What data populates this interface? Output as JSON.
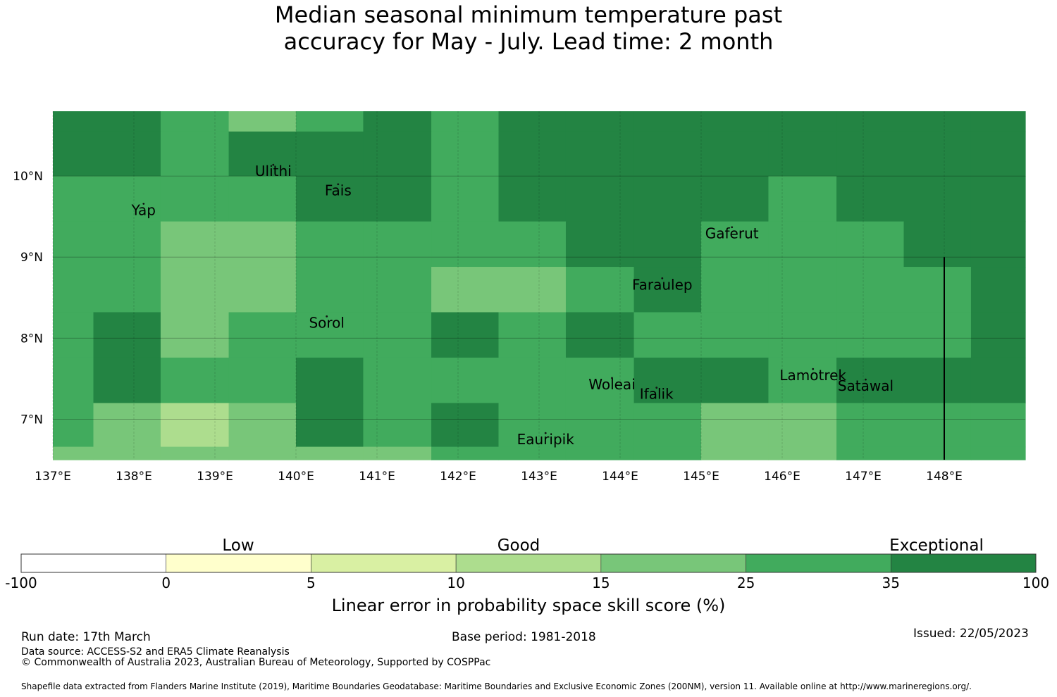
{
  "title_line1": "Median seasonal minimum temperature past",
  "title_line2": "accuracy for May - July. Lead time: 2 month",
  "colors": {
    "c5": "#78c679",
    "c6": "#41ab5d",
    "c7": "#238443",
    "c4": "#addd8e",
    "c3": "#d9f0a3",
    "c2": "#ffffcc",
    "c1": "#ffffff"
  },
  "map": {
    "lon_range": [
      137,
      149
    ],
    "lat_range": [
      6.5,
      10.8
    ],
    "lon_ticks": [
      "137°E",
      "138°E",
      "139°E",
      "140°E",
      "141°E",
      "142°E",
      "143°E",
      "144°E",
      "145°E",
      "146°E",
      "147°E",
      "148°E"
    ],
    "lat_ticks": [
      "7°N",
      "8°N",
      "9°N",
      "10°N"
    ],
    "grid": true,
    "skill_grid": {
      "col_lon_edges": [
        137,
        137.5,
        138.33,
        139.17,
        140,
        140.83,
        141.67,
        142.5,
        143.33,
        144.17,
        145,
        145.83,
        146.67,
        147.5,
        148.33,
        149
      ],
      "row_lat_edges": [
        10.8,
        10.55,
        10.0,
        9.44,
        8.88,
        8.32,
        7.76,
        7.2,
        6.66,
        6.5
      ],
      "rows": [
        [
          "c7",
          "c7",
          "c6",
          "c5",
          "c6",
          "c7",
          "c6",
          "c7",
          "c7",
          "c7",
          "c7",
          "c7",
          "c7",
          "c7",
          "c7"
        ],
        [
          "c7",
          "c7",
          "c6",
          "c7",
          "c7",
          "c7",
          "c6",
          "c7",
          "c7",
          "c7",
          "c7",
          "c7",
          "c7",
          "c7",
          "c7"
        ],
        [
          "c6",
          "c6",
          "c6",
          "c6",
          "c7",
          "c7",
          "c6",
          "c7",
          "c7",
          "c7",
          "c7",
          "c6",
          "c7",
          "c7",
          "c7"
        ],
        [
          "c6",
          "c6",
          "c5",
          "c5",
          "c6",
          "c6",
          "c6",
          "c6",
          "c7",
          "c7",
          "c6",
          "c6",
          "c6",
          "c7",
          "c7"
        ],
        [
          "c6",
          "c6",
          "c5",
          "c5",
          "c6",
          "c6",
          "c5",
          "c5",
          "c6",
          "c7",
          "c6",
          "c6",
          "c6",
          "c6",
          "c7"
        ],
        [
          "c6",
          "c7",
          "c5",
          "c6",
          "c6",
          "c6",
          "c7",
          "c6",
          "c7",
          "c6",
          "c6",
          "c6",
          "c6",
          "c6",
          "c7"
        ],
        [
          "c6",
          "c7",
          "c6",
          "c6",
          "c7",
          "c6",
          "c6",
          "c6",
          "c6",
          "c7",
          "c7",
          "c6",
          "c7",
          "c7",
          "c7"
        ],
        [
          "c6",
          "c5",
          "c4",
          "c5",
          "c7",
          "c6",
          "c7",
          "c6",
          "c6",
          "c6",
          "c5",
          "c5",
          "c6",
          "c6",
          "c6"
        ],
        [
          "c5",
          "c5",
          "c5",
          "c5",
          "c5",
          "c5",
          "c6",
          "c6",
          "c6",
          "c6",
          "c5",
          "c5",
          "c6",
          "c6",
          "c6"
        ]
      ]
    },
    "islands": [
      {
        "name": "Ulithi",
        "lon": 139.72,
        "lat": 10.0
      },
      {
        "name": "Fais",
        "lon": 140.52,
        "lat": 9.76
      },
      {
        "name": "Yap",
        "lon": 138.12,
        "lat": 9.52
      },
      {
        "name": "Gaferut",
        "lon": 145.38,
        "lat": 9.23
      },
      {
        "name": "Faraulep",
        "lon": 144.52,
        "lat": 8.6
      },
      {
        "name": "Sorol",
        "lon": 140.38,
        "lat": 8.13
      },
      {
        "name": "Woleai",
        "lon": 143.9,
        "lat": 7.37
      },
      {
        "name": "Ifalik",
        "lon": 144.45,
        "lat": 7.25
      },
      {
        "name": "Lamotrek",
        "lon": 146.38,
        "lat": 7.48
      },
      {
        "name": "Satawal",
        "lon": 147.03,
        "lat": 7.35
      },
      {
        "name": "Eauripik",
        "lon": 143.08,
        "lat": 6.69
      }
    ]
  },
  "legend": {
    "categories": [
      "Low",
      "Good",
      "Exceptional"
    ],
    "bins": [
      {
        "from": "-100",
        "color": "c1"
      },
      {
        "from": "0",
        "color": "c2"
      },
      {
        "from": "5",
        "color": "c3"
      },
      {
        "from": "10",
        "color": "c4"
      },
      {
        "from": "15",
        "color": "c5"
      },
      {
        "from": "25",
        "color": "c6"
      },
      {
        "from": "35",
        "color": "c7"
      }
    ],
    "tick_labels": [
      "-100",
      "0",
      "5",
      "10",
      "15",
      "25",
      "35",
      "100"
    ],
    "label": "Linear error in probability space skill score (%)"
  },
  "footer": {
    "run_date": "Run date: 17th March",
    "base_period": "Base period: 1981-2018",
    "issued": "Issued: 22/05/2023",
    "data_source": "Data source: ACCESS-S2 and ERA5 Climate Reanalysis",
    "copyright": "© Commonwealth of Australia 2023, Australian Bureau of Meteorology, Supported by COSPPac",
    "shapefile": "Shapefile data extracted from Flanders Marine Institute (2019), Maritime Boundaries Geodatabase: Maritime Boundaries and Exclusive Economic Zones (200NM), version 11. Available online at http://www.marineregions.org/."
  }
}
